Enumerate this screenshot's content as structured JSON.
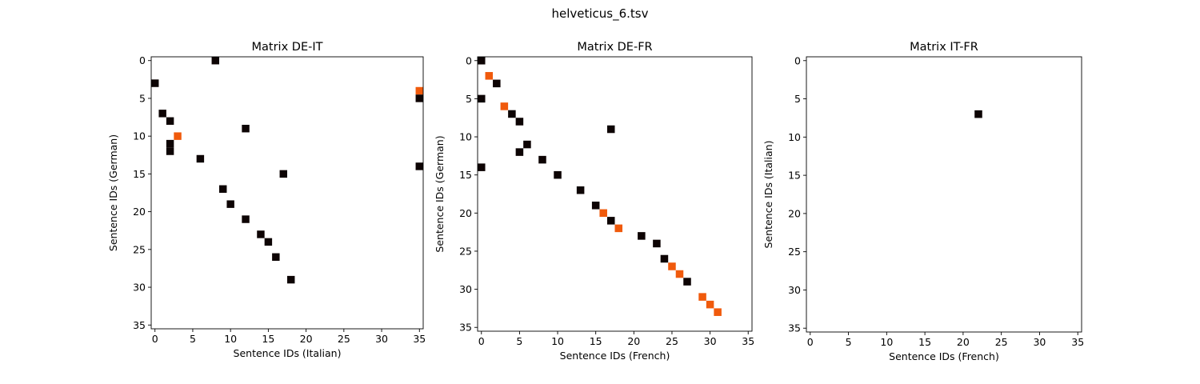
{
  "figure": {
    "title": "helveticus_6.tsv"
  },
  "colors": {
    "black": "#0d0404",
    "orange": "#f05a0c",
    "axis": "#000000",
    "background": "#ffffff"
  },
  "chart_data": [
    {
      "type": "heatmap",
      "title": "Matrix DE-IT",
      "xlabel": "Sentence IDs (Italian)",
      "ylabel": "Sentence IDs (German)",
      "xlim": [
        -0.5,
        35.5
      ],
      "ylim": [
        35.5,
        -0.5
      ],
      "xticks": [
        0,
        5,
        10,
        15,
        20,
        25,
        30,
        35
      ],
      "yticks": [
        0,
        5,
        10,
        15,
        20,
        25,
        30,
        35
      ],
      "grid": false,
      "cells": [
        {
          "x": 8,
          "y": 0,
          "color": "black"
        },
        {
          "x": 0,
          "y": 3,
          "color": "black"
        },
        {
          "x": 35,
          "y": 4,
          "color": "orange"
        },
        {
          "x": 35,
          "y": 5,
          "color": "black"
        },
        {
          "x": 1,
          "y": 7,
          "color": "black"
        },
        {
          "x": 2,
          "y": 8,
          "color": "black"
        },
        {
          "x": 12,
          "y": 9,
          "color": "black"
        },
        {
          "x": 3,
          "y": 10,
          "color": "orange"
        },
        {
          "x": 2,
          "y": 11,
          "color": "black"
        },
        {
          "x": 2,
          "y": 12,
          "color": "black"
        },
        {
          "x": 6,
          "y": 13,
          "color": "black"
        },
        {
          "x": 35,
          "y": 14,
          "color": "black"
        },
        {
          "x": 17,
          "y": 15,
          "color": "black"
        },
        {
          "x": 9,
          "y": 17,
          "color": "black"
        },
        {
          "x": 10,
          "y": 19,
          "color": "black"
        },
        {
          "x": 12,
          "y": 21,
          "color": "black"
        },
        {
          "x": 14,
          "y": 23,
          "color": "black"
        },
        {
          "x": 15,
          "y": 24,
          "color": "black"
        },
        {
          "x": 16,
          "y": 26,
          "color": "black"
        },
        {
          "x": 18,
          "y": 29,
          "color": "black"
        }
      ]
    },
    {
      "type": "heatmap",
      "title": "Matrix DE-FR",
      "xlabel": "Sentence IDs (French)",
      "ylabel": "Sentence IDs (German)",
      "xlim": [
        -0.5,
        35.5
      ],
      "ylim": [
        35.5,
        -0.5
      ],
      "xticks": [
        0,
        5,
        10,
        15,
        20,
        25,
        30,
        35
      ],
      "yticks": [
        0,
        5,
        10,
        15,
        20,
        25,
        30,
        35
      ],
      "grid": false,
      "cells": [
        {
          "x": 0,
          "y": 0,
          "color": "black"
        },
        {
          "x": 1,
          "y": 2,
          "color": "orange"
        },
        {
          "x": 2,
          "y": 3,
          "color": "black"
        },
        {
          "x": 0,
          "y": 5,
          "color": "black"
        },
        {
          "x": 3,
          "y": 6,
          "color": "orange"
        },
        {
          "x": 4,
          "y": 7,
          "color": "black"
        },
        {
          "x": 5,
          "y": 8,
          "color": "black"
        },
        {
          "x": 17,
          "y": 9,
          "color": "black"
        },
        {
          "x": 6,
          "y": 11,
          "color": "black"
        },
        {
          "x": 5,
          "y": 12,
          "color": "black"
        },
        {
          "x": 8,
          "y": 13,
          "color": "black"
        },
        {
          "x": 0,
          "y": 14,
          "color": "black"
        },
        {
          "x": 10,
          "y": 15,
          "color": "black"
        },
        {
          "x": 13,
          "y": 17,
          "color": "black"
        },
        {
          "x": 15,
          "y": 19,
          "color": "black"
        },
        {
          "x": 16,
          "y": 20,
          "color": "orange"
        },
        {
          "x": 17,
          "y": 21,
          "color": "black"
        },
        {
          "x": 18,
          "y": 22,
          "color": "orange"
        },
        {
          "x": 21,
          "y": 23,
          "color": "black"
        },
        {
          "x": 23,
          "y": 24,
          "color": "black"
        },
        {
          "x": 24,
          "y": 26,
          "color": "black"
        },
        {
          "x": 25,
          "y": 27,
          "color": "orange"
        },
        {
          "x": 26,
          "y": 28,
          "color": "orange"
        },
        {
          "x": 27,
          "y": 29,
          "color": "black"
        },
        {
          "x": 29,
          "y": 31,
          "color": "orange"
        },
        {
          "x": 30,
          "y": 32,
          "color": "orange"
        },
        {
          "x": 31,
          "y": 33,
          "color": "orange"
        }
      ]
    },
    {
      "type": "heatmap",
      "title": "Matrix IT-FR",
      "xlabel": "Sentence IDs (French)",
      "ylabel": "Sentence IDs (Italian)",
      "xlim": [
        -0.5,
        35.5
      ],
      "ylim": [
        35.5,
        -0.5
      ],
      "xticks": [
        0,
        5,
        10,
        15,
        20,
        25,
        30,
        35
      ],
      "yticks": [
        0,
        5,
        10,
        15,
        20,
        25,
        30,
        35
      ],
      "grid": false,
      "cells": [
        {
          "x": 22,
          "y": 7,
          "color": "black"
        }
      ]
    }
  ]
}
